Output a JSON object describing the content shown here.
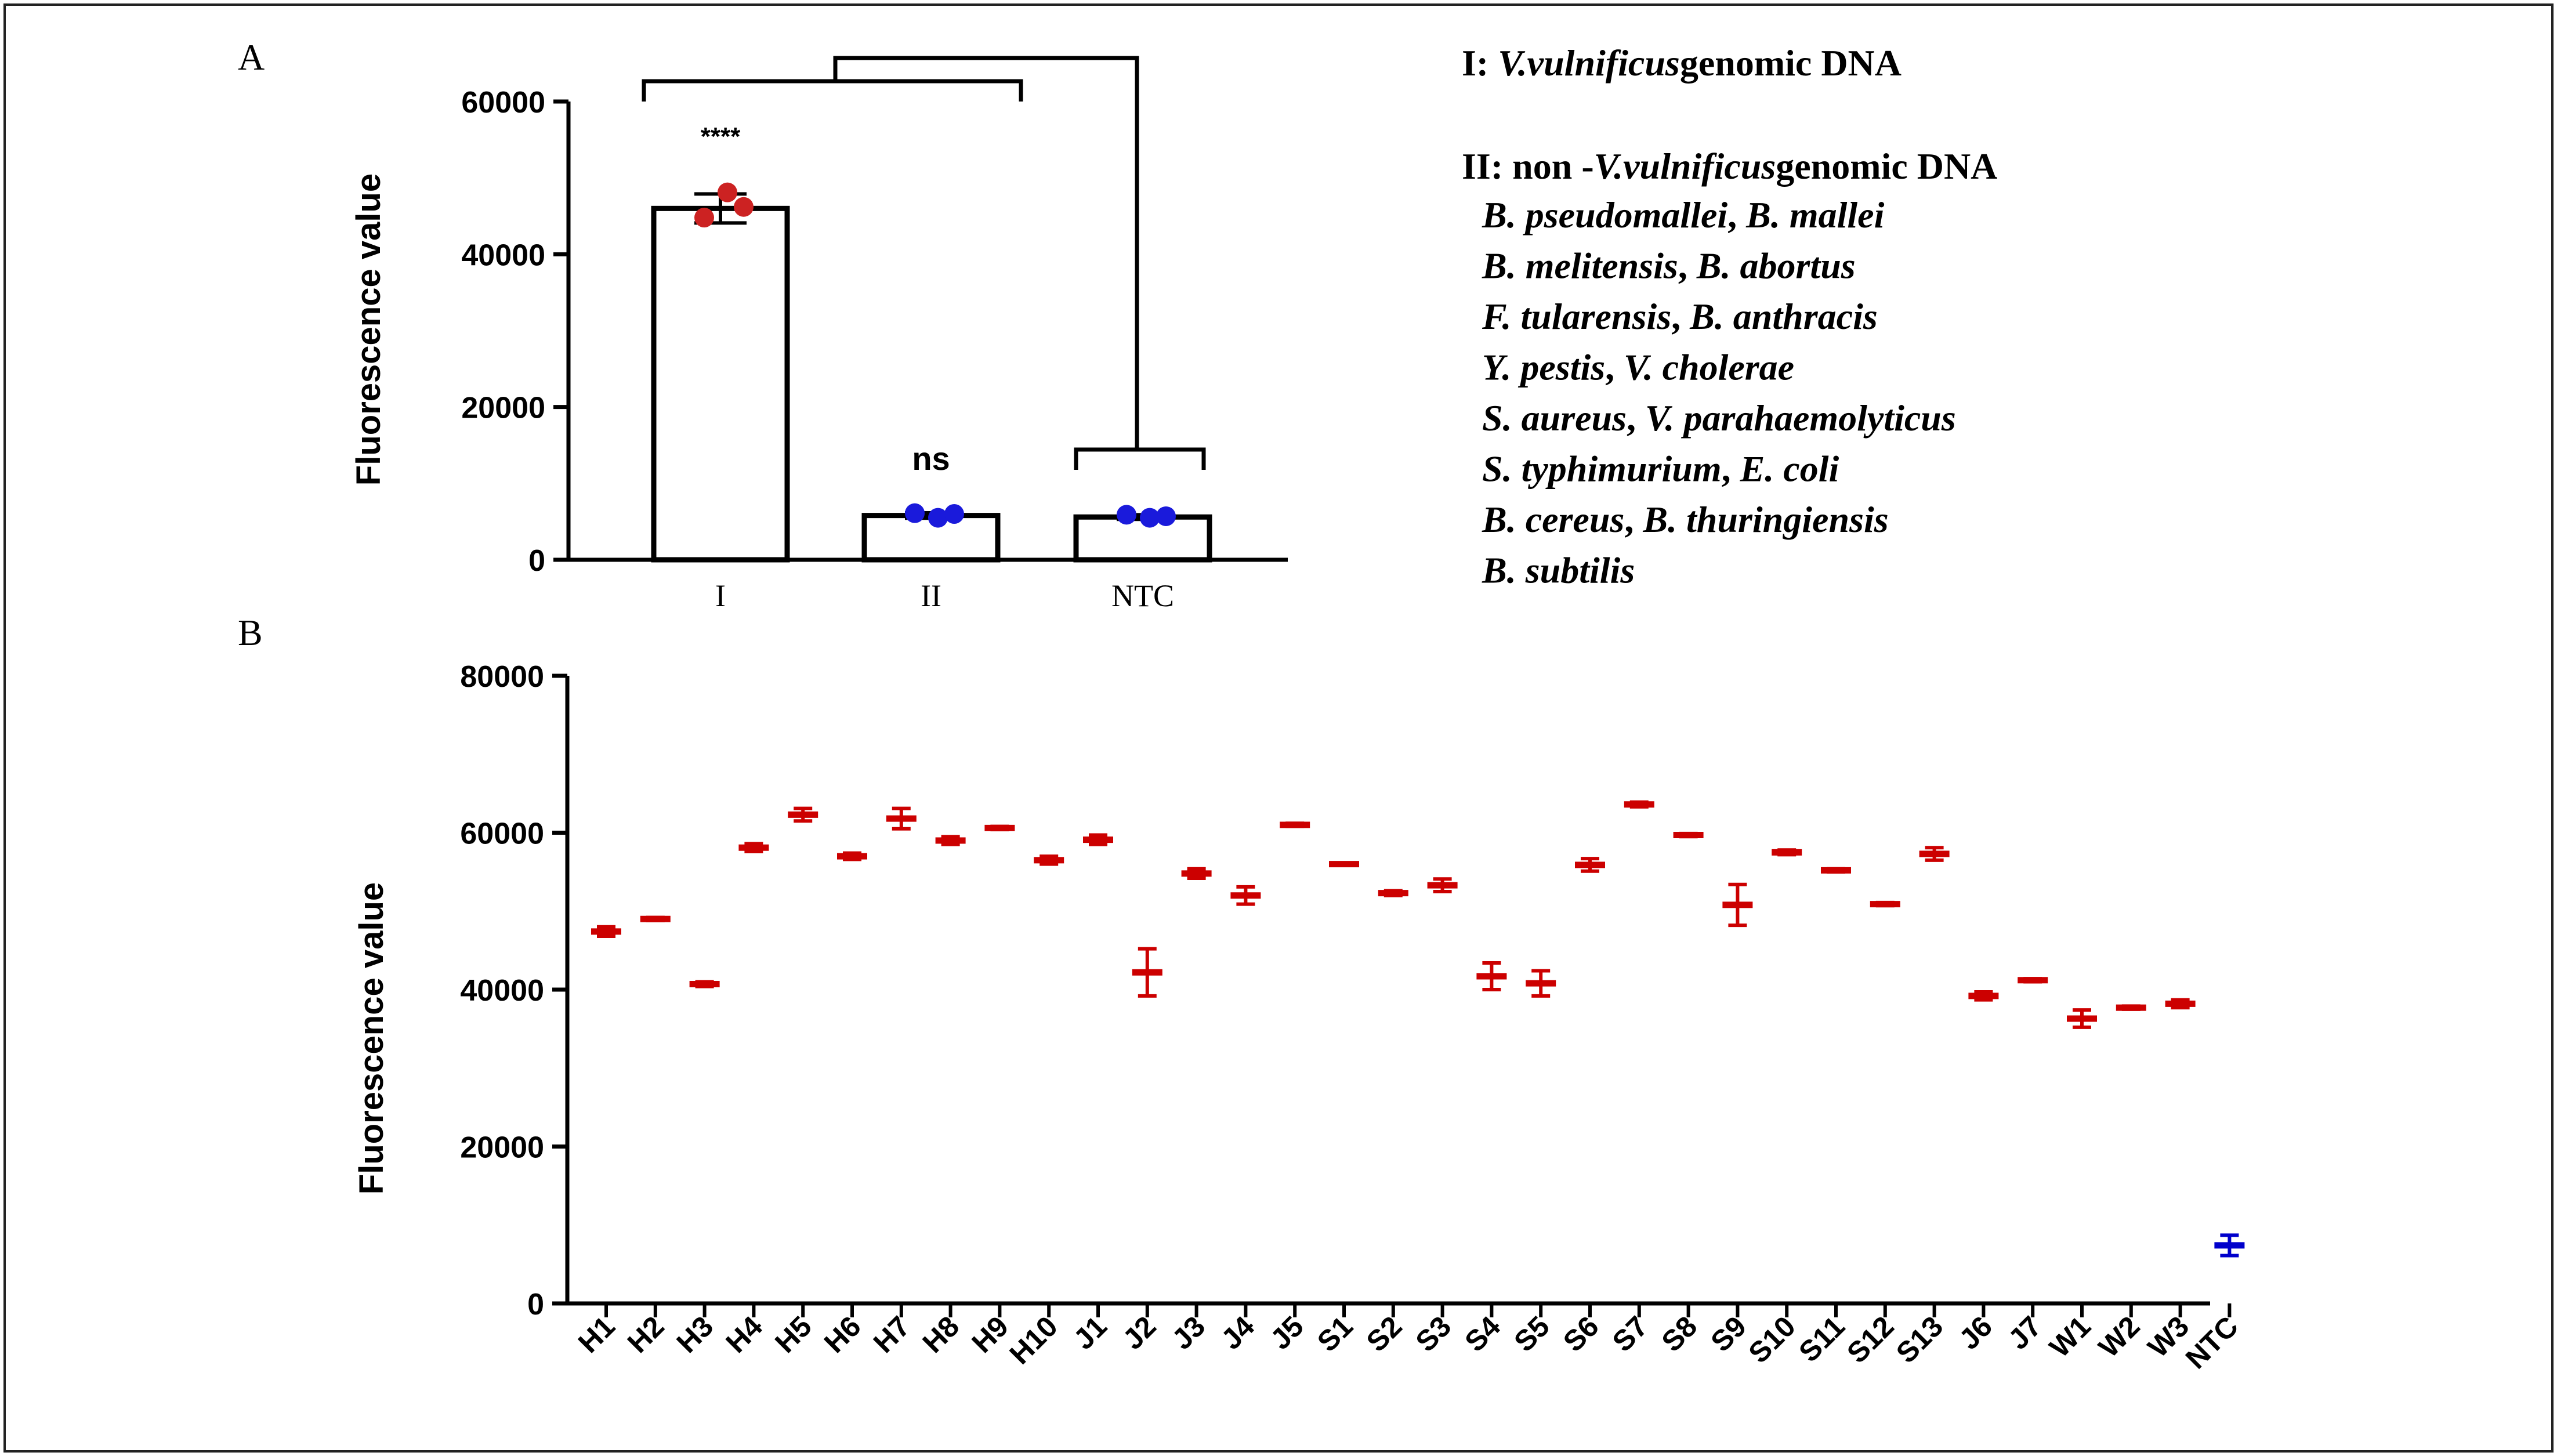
{
  "colors": {
    "red": "#cc0000",
    "blue": "#0000cc",
    "axis": "#000000"
  },
  "chart_data": [
    {
      "panel_label": "A",
      "type": "bar",
      "ylabel": "Fluorescence value",
      "ylim": [
        0,
        60000
      ],
      "yticks": [
        "0",
        "20000",
        "40000",
        "60000"
      ],
      "categories": [
        "I",
        "II",
        "NTC"
      ],
      "values": [
        46000,
        5800,
        5600
      ],
      "errors": [
        1900,
        350,
        300
      ],
      "points": [
        [
          44800,
          48100,
          46200
        ],
        [
          6100,
          5500,
          6000
        ],
        [
          5900,
          5500,
          5700
        ]
      ],
      "point_colors": [
        "#cc2222",
        "#1a1adb",
        "#1a1adb"
      ],
      "significance": [
        "****",
        "ns",
        ""
      ]
    },
    {
      "panel_label": "B",
      "type": "scatter",
      "ylabel": "Fluorescence value",
      "ylim": [
        0,
        80000
      ],
      "yticks": [
        "0",
        "20000",
        "40000",
        "60000",
        "80000"
      ],
      "categories": [
        "H1",
        "H2",
        "H3",
        "H4",
        "H5",
        "H6",
        "H7",
        "H8",
        "H9",
        "H10",
        "J1",
        "J2",
        "J3",
        "J4",
        "J5",
        "S1",
        "S2",
        "S3",
        "S4",
        "S5",
        "S6",
        "S7",
        "S8",
        "S9",
        "S10",
        "S11",
        "S12",
        "S13",
        "J6",
        "J7",
        "W1",
        "W2",
        "W3",
        "NTC"
      ],
      "values": [
        47400,
        49000,
        40700,
        58100,
        62300,
        57000,
        61800,
        59000,
        60600,
        56500,
        59100,
        42200,
        54800,
        52000,
        61000,
        56000,
        52300,
        53300,
        41700,
        40800,
        55900,
        63600,
        59700,
        50800,
        57500,
        55200,
        50900,
        57300,
        39200,
        41200,
        36300,
        37700,
        38200,
        7400
      ],
      "errors": [
        600,
        200,
        300,
        500,
        800,
        400,
        1300,
        500,
        200,
        500,
        600,
        3000,
        600,
        1100,
        200,
        100,
        300,
        800,
        1700,
        1600,
        800,
        300,
        200,
        2600,
        300,
        200,
        200,
        800,
        500,
        200,
        1100,
        200,
        500,
        1300
      ]
    }
  ],
  "legend": {
    "group1": {
      "prefix": "I: ",
      "species": "V.vulnificus",
      "suffix": "genomic DNA"
    },
    "group2": {
      "prefix": "II: non -",
      "species": "V.vulnificus",
      "suffix": "genomic DNA"
    },
    "species_lines": [
      [
        "B. pseudomallei",
        ", ",
        "B. mallei"
      ],
      [
        "B. melitensis",
        ", ",
        "B. abortus"
      ],
      [
        "F. tularensis",
        ", ",
        "B. anthracis"
      ],
      [
        "Y. pestis",
        ", ",
        "V. cholerae"
      ],
      [
        "S. aureus",
        ", ",
        "V. parahaemolyticus"
      ],
      [
        "S. typhimurium",
        ", ",
        "E. coli"
      ],
      [
        "B. cereus",
        ", ",
        "B. thuringiensis"
      ],
      [
        "B. subtilis",
        "",
        ""
      ]
    ]
  }
}
